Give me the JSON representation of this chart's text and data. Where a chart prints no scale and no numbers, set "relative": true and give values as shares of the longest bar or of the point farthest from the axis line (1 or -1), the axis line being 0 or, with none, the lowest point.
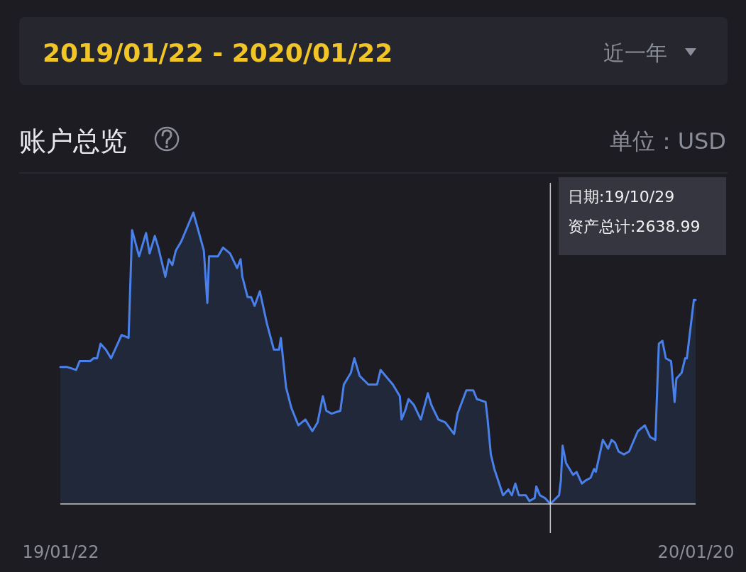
{
  "chart_data": {
    "type": "area",
    "title": "账户总览",
    "relative": true,
    "annotations": [
      "2019/01/22 - 2020/01/22",
      "近一年",
      "单位：USD",
      "日期:19/10/29",
      "资产总计:2638.99"
    ],
    "xlim": [
      "2019-01-22",
      "2020-01-20"
    ],
    "xticks": [
      {
        "value": "2019-01-22",
        "label": "19/01/22"
      },
      {
        "value": "2020-01-20",
        "label": "20/01/20"
      }
    ],
    "ref_lines": [
      {
        "axis": "x",
        "value": "2019-10-29",
        "color": "#c8c8c8"
      }
    ],
    "x": [
      "2019-01-22",
      "2019-01-26",
      "2019-01-31",
      "2019-02-02",
      "2019-02-08",
      "2019-02-10",
      "2019-02-12",
      "2019-02-14",
      "2019-02-17",
      "2019-02-20",
      "2019-02-26",
      "2019-03-02",
      "2019-03-04",
      "2019-03-08",
      "2019-03-12",
      "2019-03-14",
      "2019-03-17",
      "2019-03-19",
      "2019-03-23",
      "2019-03-25",
      "2019-03-27",
      "2019-03-29",
      "2019-04-01",
      "2019-04-08",
      "2019-04-14",
      "2019-04-16",
      "2019-04-17",
      "2019-04-22",
      "2019-04-25",
      "2019-04-29",
      "2019-05-03",
      "2019-05-05",
      "2019-05-06",
      "2019-05-09",
      "2019-05-11",
      "2019-05-13",
      "2019-05-16",
      "2019-05-20",
      "2019-05-24",
      "2019-05-27",
      "2019-05-28",
      "2019-05-31",
      "2019-06-03",
      "2019-06-07",
      "2019-06-11",
      "2019-06-15",
      "2019-06-18",
      "2019-06-21",
      "2019-06-23",
      "2019-06-26",
      "2019-07-01",
      "2019-07-03",
      "2019-07-07",
      "2019-07-09",
      "2019-07-12",
      "2019-07-17",
      "2019-07-22",
      "2019-07-24",
      "2019-07-31",
      "2019-08-04",
      "2019-08-05",
      "2019-08-07",
      "2019-08-09",
      "2019-08-12",
      "2019-08-16",
      "2019-08-20",
      "2019-08-22",
      "2019-08-26",
      "2019-08-30",
      "2019-09-04",
      "2019-09-06",
      "2019-09-11",
      "2019-09-15",
      "2019-09-17",
      "2019-09-22",
      "2019-09-23",
      "2019-09-25",
      "2019-09-27",
      "2019-10-02",
      "2019-10-05",
      "2019-10-07",
      "2019-10-09",
      "2019-10-11",
      "2019-10-15",
      "2019-10-17",
      "2019-10-20",
      "2019-10-21",
      "2019-10-23",
      "2019-10-26",
      "2019-10-29",
      "2019-11-03",
      "2019-11-04",
      "2019-11-05",
      "2019-11-07",
      "2019-11-11",
      "2019-11-13",
      "2019-11-16",
      "2019-11-18",
      "2019-11-21",
      "2019-11-23",
      "2019-11-24",
      "2019-11-28",
      "2019-12-01",
      "2019-12-03",
      "2019-12-05",
      "2019-12-07",
      "2019-12-10",
      "2019-12-13",
      "2019-12-18",
      "2019-12-22",
      "2019-12-25",
      "2019-12-28",
      "2019-12-30",
      "2020-01-01",
      "2020-01-03",
      "2020-01-06",
      "2020-01-08",
      "2020-01-09",
      "2020-01-12",
      "2020-01-14",
      "2020-01-15",
      "2020-01-19",
      "2020-01-20"
    ],
    "series": [
      {
        "color": "#4a80ea",
        "values": [
          0.47,
          0.47,
          0.46,
          0.49,
          0.49,
          0.5,
          0.5,
          0.55,
          0.53,
          0.5,
          0.58,
          0.57,
          0.94,
          0.85,
          0.93,
          0.86,
          0.92,
          0.88,
          0.78,
          0.84,
          0.82,
          0.87,
          0.9,
          1,
          0.87,
          0.69,
          0.85,
          0.85,
          0.88,
          0.86,
          0.81,
          0.84,
          0.78,
          0.71,
          0.71,
          0.68,
          0.73,
          0.62,
          0.53,
          0.53,
          0.57,
          0.4,
          0.33,
          0.27,
          0.29,
          0.25,
          0.28,
          0.37,
          0.32,
          0.31,
          0.32,
          0.41,
          0.45,
          0.5,
          0.44,
          0.41,
          0.41,
          0.46,
          0.41,
          0.37,
          0.29,
          0.32,
          0.36,
          0.34,
          0.29,
          0.38,
          0.34,
          0.29,
          0.28,
          0.24,
          0.31,
          0.39,
          0.39,
          0.36,
          0.35,
          0.3,
          0.17,
          0.12,
          0.03,
          0.05,
          0.03,
          0.07,
          0.03,
          0.03,
          0.01,
          0.02,
          0.06,
          0.03,
          0.02,
          0,
          0.03,
          0.08,
          0.2,
          0.14,
          0.1,
          0.11,
          0.07,
          0.08,
          0.09,
          0.12,
          0.11,
          0.22,
          0.19,
          0.22,
          0.21,
          0.18,
          0.17,
          0.18,
          0.25,
          0.27,
          0.23,
          0.22,
          0.55,
          0.56,
          0.5,
          0.49,
          0.35,
          0.43,
          0.45,
          0.5,
          0.5,
          0.7,
          0.7
        ]
      }
    ]
  }
}
